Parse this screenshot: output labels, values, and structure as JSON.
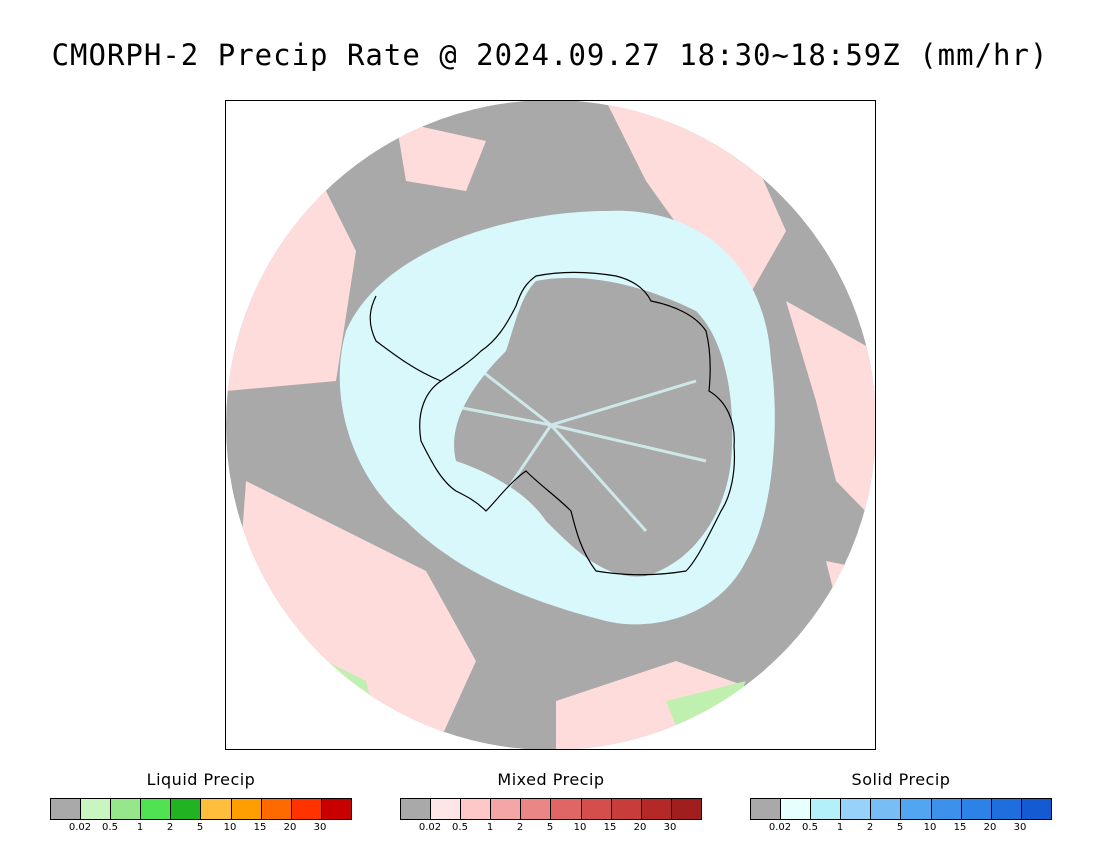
{
  "title": "CMORPH-2 Precip Rate @ 2024.09.27 18:30~18:59Z (mm/hr)",
  "map": {
    "projection": "south-polar-stereographic",
    "colors": {
      "no_precip": "#a9a9a9",
      "mixed_light": "#ffdcdc",
      "solid_light": "#d8f8fb",
      "liquid_light": "#c0f0b0",
      "coastline": "#000000"
    }
  },
  "legends": [
    {
      "title": "Liquid Precip",
      "colors": [
        "#a9a9a9",
        "#c8f5c0",
        "#96e68c",
        "#50e250",
        "#21b321",
        "#ffbe3c",
        "#ff9e00",
        "#ff6a00",
        "#ff3200",
        "#c80000"
      ],
      "ticks": [
        "0.02",
        "0.5",
        "1",
        "2",
        "5",
        "10",
        "15",
        "20",
        "30"
      ]
    },
    {
      "title": "Mixed Precip",
      "colors": [
        "#a9a9a9",
        "#ffe6e6",
        "#ffc8c8",
        "#f4a6a6",
        "#ea8686",
        "#e06666",
        "#d44e4e",
        "#c83c3c",
        "#b42828",
        "#a01e1e"
      ],
      "ticks": [
        "0.02",
        "0.5",
        "1",
        "2",
        "5",
        "10",
        "15",
        "20",
        "30"
      ]
    },
    {
      "title": "Solid Precip",
      "colors": [
        "#a9a9a9",
        "#e6ffff",
        "#b4f0fa",
        "#96d2fa",
        "#78bef6",
        "#50a6f0",
        "#3c91eb",
        "#2c82e6",
        "#1e6ede",
        "#145ad2"
      ],
      "ticks": [
        "0.02",
        "0.5",
        "1",
        "2",
        "5",
        "10",
        "15",
        "20",
        "30"
      ]
    }
  ]
}
